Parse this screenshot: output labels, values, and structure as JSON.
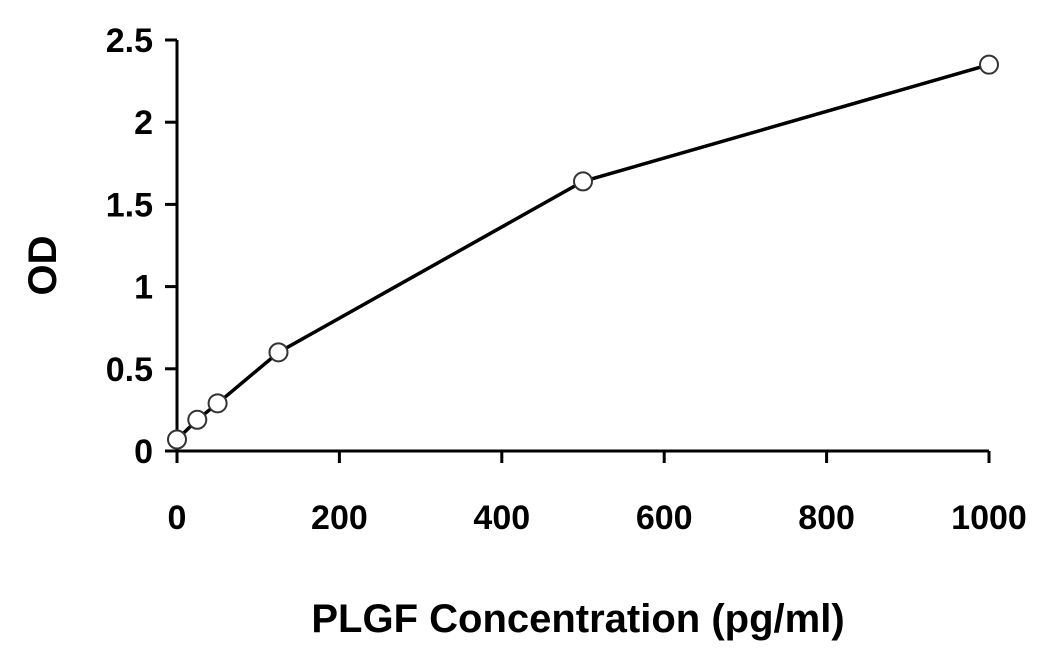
{
  "chart_data": {
    "type": "line",
    "title": "",
    "xlabel": "PLGF Concentration (pg/ml)",
    "ylabel": "OD",
    "xlim": [
      0,
      1000
    ],
    "ylim": [
      0,
      2.5
    ],
    "xticks": [
      0,
      200,
      400,
      600,
      800,
      1000
    ],
    "xtick_labels": [
      "0",
      "200",
      "400",
      "600",
      "800",
      "1000"
    ],
    "yticks": [
      0,
      0.5,
      1,
      1.5,
      2,
      2.5
    ],
    "ytick_labels": [
      "0",
      "0.5",
      "1",
      "1.5",
      "2",
      "2.5"
    ],
    "grid": false,
    "legend": "none",
    "series": [
      {
        "x": [
          0,
          25,
          50,
          125,
          500,
          1000
        ],
        "y": [
          0.07,
          0.19,
          0.29,
          0.6,
          1.64,
          2.35
        ]
      }
    ],
    "colors": {
      "line": "#000000",
      "marker_fill": "#ffffff",
      "marker_stroke": "#333333"
    }
  }
}
